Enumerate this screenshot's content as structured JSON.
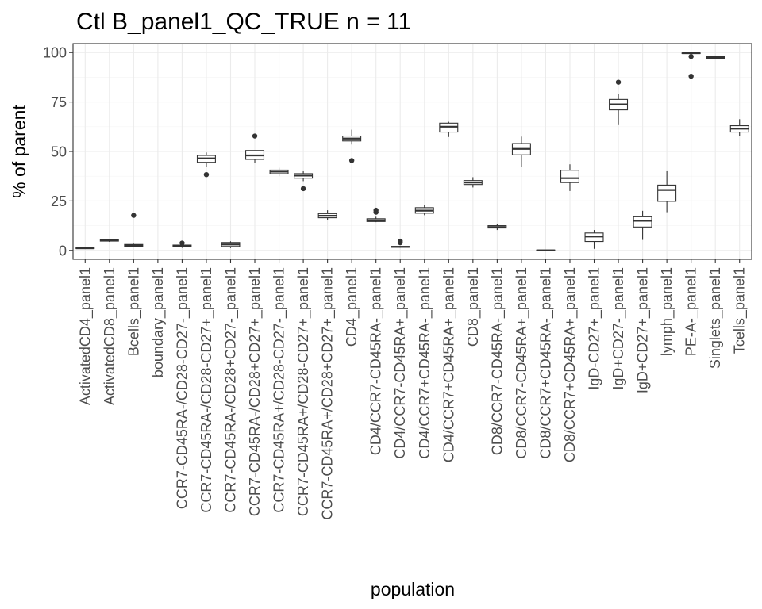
{
  "chart_data": {
    "type": "boxplot",
    "title": "Ctl B_panel1_QC_TRUE n = 11",
    "xlabel": "population",
    "ylabel": "% of parent",
    "ylim": [
      -4.5,
      104.5
    ],
    "yticks": [
      0,
      25,
      50,
      75,
      100
    ],
    "grid": true,
    "categories": [
      "ActivatedCD4_panel1",
      "ActivatedCD8_panel1",
      "Bcells_panel1",
      "boundary_panel1",
      "CCR7-CD45RA-/CD28-CD27-_panel1",
      "CCR7-CD45RA-/CD28-CD27+_panel1",
      "CCR7-CD45RA-/CD28+CD27-_panel1",
      "CCR7-CD45RA-/CD28+CD27+_panel1",
      "CCR7-CD45RA+/CD28-CD27-_panel1",
      "CCR7-CD45RA+/CD28-CD27+_panel1",
      "CCR7-CD45RA+/CD28+CD27+_panel1",
      "CD4_panel1",
      "CD4/CCR7-CD45RA-_panel1",
      "CD4/CCR7-CD45RA+_panel1",
      "CD4/CCR7+CD45RA-_panel1",
      "CD4/CCR7+CD45RA+_panel1",
      "CD8_panel1",
      "CD8/CCR7-CD45RA-_panel1",
      "CD8/CCR7-CD45RA+_panel1",
      "CD8/CCR7+CD45RA-_panel1",
      "CD8/CCR7+CD45RA+_panel1",
      "IgD-CD27+_panel1",
      "IgD+CD27-_panel1",
      "IgD+CD27+_panel1",
      "lymph_panel1",
      "PE-A-_panel1",
      "Singlets_panel1",
      "Tcells_panel1"
    ],
    "boxes": [
      {
        "min": 0.8,
        "q1": 0.9,
        "median": 1.1,
        "q3": 1.3,
        "max": 1.5,
        "outliers": []
      },
      {
        "min": 4.3,
        "q1": 4.7,
        "median": 5.0,
        "q3": 5.3,
        "max": 5.6,
        "outliers": []
      },
      {
        "min": 1.7,
        "q1": 2.1,
        "median": 2.5,
        "q3": 3.0,
        "max": 3.4,
        "outliers": [
          17.7
        ]
      },
      null,
      {
        "min": 1.3,
        "q1": 1.8,
        "median": 2.3,
        "q3": 2.7,
        "max": 3.2,
        "outliers": [
          3.7
        ]
      },
      {
        "min": 42.3,
        "q1": 44.5,
        "median": 46.5,
        "q3": 48.0,
        "max": 49.5,
        "outliers": [
          38.3
        ]
      },
      {
        "min": 1.2,
        "q1": 2.0,
        "median": 3.0,
        "q3": 4.0,
        "max": 4.6,
        "outliers": []
      },
      {
        "min": 44.3,
        "q1": 46.0,
        "median": 48.0,
        "q3": 50.5,
        "max": 50.5,
        "outliers": [
          57.8
        ]
      },
      {
        "min": 37.5,
        "q1": 38.8,
        "median": 39.8,
        "q3": 40.6,
        "max": 41.8,
        "outliers": []
      },
      {
        "min": 35.0,
        "q1": 36.5,
        "median": 37.8,
        "q3": 38.8,
        "max": 40.0,
        "outliers": [
          31.2
        ]
      },
      {
        "min": 15.5,
        "q1": 16.5,
        "median": 17.5,
        "q3": 18.6,
        "max": 20.3,
        "outliers": []
      },
      {
        "min": 53.5,
        "q1": 55.3,
        "median": 56.5,
        "q3": 57.8,
        "max": 61.0,
        "outliers": [
          45.4
        ]
      },
      {
        "min": 14.3,
        "q1": 14.6,
        "median": 15.2,
        "q3": 16.0,
        "max": 17.0,
        "outliers": [
          19.3,
          20.3
        ]
      },
      {
        "min": 1.3,
        "q1": 1.6,
        "median": 1.8,
        "q3": 2.0,
        "max": 2.2,
        "outliers": [
          3.9,
          4.7
        ]
      },
      {
        "min": 17.8,
        "q1": 18.8,
        "median": 20.1,
        "q3": 21.6,
        "max": 23.0,
        "outliers": []
      },
      {
        "min": 57.3,
        "q1": 59.8,
        "median": 62.5,
        "q3": 64.3,
        "max": 65.0,
        "outliers": []
      },
      {
        "min": 31.8,
        "q1": 33.3,
        "median": 34.3,
        "q3": 35.3,
        "max": 37.0,
        "outliers": []
      },
      {
        "min": 10.3,
        "q1": 11.3,
        "median": 11.8,
        "q3": 12.5,
        "max": 13.5,
        "outliers": []
      },
      {
        "min": 42.3,
        "q1": 48.3,
        "median": 51.3,
        "q3": 54.0,
        "max": 57.5,
        "outliers": []
      },
      {
        "min": -0.3,
        "q1": -0.1,
        "median": 0.0,
        "q3": 0.2,
        "max": 0.3,
        "outliers": []
      },
      {
        "min": 30.0,
        "q1": 34.3,
        "median": 36.5,
        "q3": 40.5,
        "max": 43.5,
        "outliers": []
      },
      {
        "min": 0.8,
        "q1": 4.5,
        "median": 7.0,
        "q3": 8.8,
        "max": 10.3,
        "outliers": []
      },
      {
        "min": 63.3,
        "q1": 71.0,
        "median": 73.8,
        "q3": 76.3,
        "max": 79.0,
        "outliers": [
          85.0
        ]
      },
      {
        "min": 5.3,
        "q1": 11.8,
        "median": 15.0,
        "q3": 17.0,
        "max": 20.0,
        "outliers": []
      },
      {
        "min": 19.3,
        "q1": 24.8,
        "median": 30.5,
        "q3": 33.0,
        "max": 40.0,
        "outliers": []
      },
      {
        "min": 99.3,
        "q1": 99.5,
        "median": 99.7,
        "q3": 99.8,
        "max": 100.0,
        "outliers": [
          98.0,
          88.0
        ]
      },
      {
        "min": 96.5,
        "q1": 97.0,
        "median": 97.5,
        "q3": 98.0,
        "max": 98.5,
        "outliers": []
      },
      {
        "min": 57.8,
        "q1": 59.8,
        "median": 61.5,
        "q3": 63.0,
        "max": 66.3,
        "outliers": []
      }
    ]
  }
}
